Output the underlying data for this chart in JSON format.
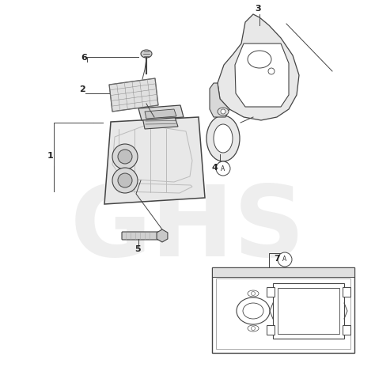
{
  "bg_color": "#ffffff",
  "lc": "#444444",
  "fc_light": "#eeeeee",
  "fc_mid": "#d8d8d8",
  "fc_dark": "#c0c0c0",
  "watermark": "GHS",
  "wm_color": "#dedede"
}
